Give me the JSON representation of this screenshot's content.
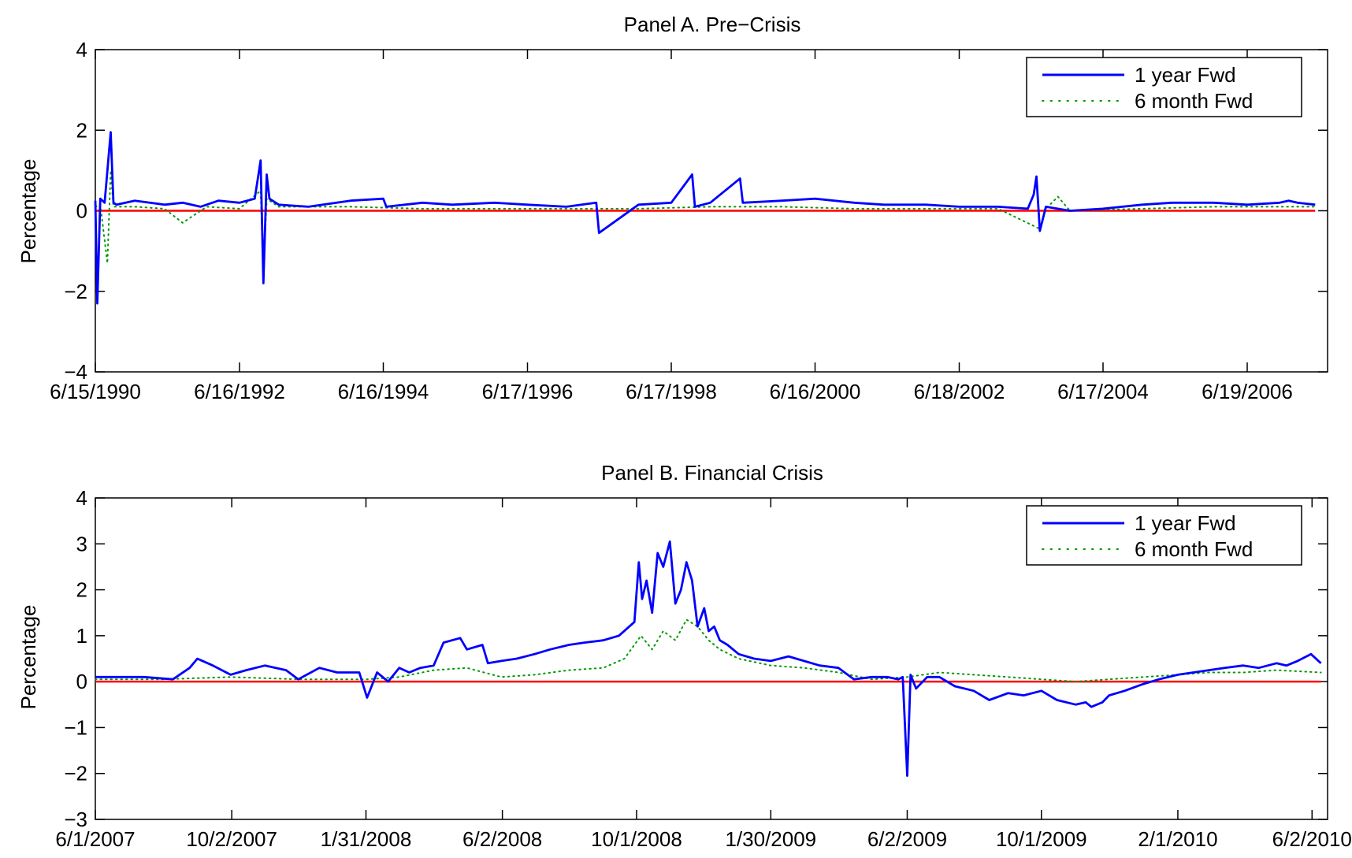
{
  "chart_data": [
    {
      "type": "line",
      "title": "Panel A. Pre−Crisis",
      "xlabel": "",
      "ylabel": "Percentage",
      "ylim": [
        -4,
        4
      ],
      "yticks": [
        "−4",
        "−2",
        "0",
        "2",
        "4"
      ],
      "xticks": [
        "6/15/1990",
        "6/16/1992",
        "6/16/1994",
        "6/17/1996",
        "6/17/1998",
        "6/16/2000",
        "6/18/2002",
        "6/17/2004",
        "6/19/2006"
      ],
      "legend_position": "top-right",
      "series": [
        {
          "name": "1 year Fwd",
          "color": "#0000ff",
          "style": "solid",
          "x": [
            "1990-06-15",
            "1990-06-25",
            "1990-07-10",
            "1990-08-01",
            "1990-09-01",
            "1990-09-15",
            "1990-10-01",
            "1991-01-01",
            "1991-06-01",
            "1991-09-01",
            "1991-12-01",
            "1992-03-01",
            "1992-06-16",
            "1992-09-01",
            "1992-10-01",
            "1992-10-15",
            "1992-11-01",
            "1992-11-15",
            "1993-01-01",
            "1993-06-01",
            "1994-01-01",
            "1994-06-16",
            "1994-07-01",
            "1995-01-01",
            "1995-06-01",
            "1996-01-01",
            "1996-06-17",
            "1997-01-01",
            "1997-06-01",
            "1997-06-15",
            "1998-01-01",
            "1998-06-17",
            "1998-10-01",
            "1998-10-15",
            "1999-01-01",
            "1999-06-01",
            "1999-06-15",
            "2000-01-01",
            "2000-06-16",
            "2001-01-01",
            "2001-06-01",
            "2002-01-01",
            "2002-06-18",
            "2003-01-01",
            "2003-06-01",
            "2003-07-01",
            "2003-07-15",
            "2003-08-01",
            "2003-09-01",
            "2004-01-01",
            "2004-06-17",
            "2005-01-01",
            "2005-06-01",
            "2006-01-01",
            "2006-06-19",
            "2006-12-01",
            "2007-01-15",
            "2007-03-01",
            "2007-05-30"
          ],
          "values": [
            0.25,
            -2.3,
            0.3,
            0.2,
            1.95,
            0.2,
            0.15,
            0.25,
            0.15,
            0.2,
            0.1,
            0.25,
            0.2,
            0.3,
            1.25,
            -1.8,
            0.9,
            0.3,
            0.15,
            0.1,
            0.25,
            0.3,
            0.1,
            0.2,
            0.15,
            0.2,
            0.15,
            0.1,
            0.2,
            -0.55,
            0.15,
            0.2,
            0.9,
            0.1,
            0.2,
            0.8,
            0.2,
            0.25,
            0.3,
            0.2,
            0.15,
            0.15,
            0.1,
            0.1,
            0.05,
            0.4,
            0.85,
            -0.5,
            0.1,
            0.0,
            0.05,
            0.15,
            0.2,
            0.2,
            0.15,
            0.2,
            0.25,
            0.2,
            0.15
          ]
        },
        {
          "name": "6 month Fwd",
          "color": "#009900",
          "style": "dotted",
          "x": [
            "1990-06-15",
            "1990-07-10",
            "1990-08-15",
            "1990-09-01",
            "1990-09-15",
            "1991-01-01",
            "1991-06-01",
            "1991-09-01",
            "1992-01-01",
            "1992-06-16",
            "1992-10-01",
            "1992-10-15",
            "1992-11-01",
            "1993-01-01",
            "1994-01-01",
            "1995-01-01",
            "1996-01-01",
            "1997-01-01",
            "1998-01-01",
            "1999-01-01",
            "2000-01-01",
            "2001-01-01",
            "2002-01-01",
            "2003-01-01",
            "2003-08-01",
            "2003-09-01",
            "2003-11-01",
            "2004-01-01",
            "2005-01-01",
            "2006-01-01",
            "2007-05-30"
          ],
          "values": [
            0.1,
            0.15,
            -1.3,
            1.0,
            0.1,
            0.1,
            0.05,
            -0.3,
            0.1,
            0.05,
            0.5,
            -1.6,
            0.3,
            0.1,
            0.1,
            0.05,
            0.05,
            0.05,
            0.05,
            0.1,
            0.1,
            0.05,
            0.05,
            0.05,
            -0.45,
            0.05,
            0.35,
            0.0,
            0.05,
            0.1,
            0.1
          ]
        }
      ]
    },
    {
      "type": "line",
      "title": "Panel B. Financial Crisis",
      "xlabel": "",
      "ylabel": "Percentage",
      "ylim": [
        -3,
        4
      ],
      "yticks": [
        "−3",
        "−2",
        "−1",
        "0",
        "1",
        "2",
        "3",
        "4"
      ],
      "xticks": [
        "6/1/2007",
        "10/2/2007",
        "1/31/2008",
        "6/2/2008",
        "10/1/2008",
        "1/30/2009",
        "6/2/2009",
        "10/1/2009",
        "2/1/2010",
        "6/2/2010"
      ],
      "legend_position": "top-right",
      "series": [
        {
          "name": "1 year Fwd",
          "color": "#0000ff",
          "style": "solid",
          "x": [
            "2007-06-01",
            "2007-06-20",
            "2007-07-15",
            "2007-08-10",
            "2007-08-25",
            "2007-09-01",
            "2007-09-15",
            "2007-10-01",
            "2007-10-15",
            "2007-11-01",
            "2007-11-20",
            "2007-12-01",
            "2007-12-20",
            "2008-01-05",
            "2008-01-25",
            "2008-02-01",
            "2008-02-10",
            "2008-02-20",
            "2008-03-01",
            "2008-03-10",
            "2008-03-20",
            "2008-04-01",
            "2008-04-10",
            "2008-04-25",
            "2008-05-01",
            "2008-05-15",
            "2008-05-20",
            "2008-06-01",
            "2008-06-15",
            "2008-07-01",
            "2008-07-15",
            "2008-08-01",
            "2008-08-15",
            "2008-09-01",
            "2008-09-15",
            "2008-09-29",
            "2008-10-03",
            "2008-10-06",
            "2008-10-10",
            "2008-10-15",
            "2008-10-20",
            "2008-10-25",
            "2008-10-31",
            "2008-11-05",
            "2008-11-10",
            "2008-11-15",
            "2008-11-20",
            "2008-11-25",
            "2008-12-01",
            "2008-12-05",
            "2008-12-10",
            "2008-12-15",
            "2008-12-22",
            "2009-01-01",
            "2009-01-15",
            "2009-01-30",
            "2009-02-15",
            "2009-03-01",
            "2009-03-15",
            "2009-04-01",
            "2009-04-15",
            "2009-05-01",
            "2009-05-15",
            "2009-05-25",
            "2009-05-29",
            "2009-06-02",
            "2009-06-05",
            "2009-06-10",
            "2009-06-20",
            "2009-07-01",
            "2009-07-15",
            "2009-08-01",
            "2009-08-15",
            "2009-09-01",
            "2009-09-15",
            "2009-10-01",
            "2009-10-15",
            "2009-11-01",
            "2009-11-10",
            "2009-11-15",
            "2009-11-25",
            "2009-12-01",
            "2009-12-15",
            "2010-01-01",
            "2010-01-15",
            "2010-02-01",
            "2010-02-15",
            "2010-03-01",
            "2010-03-15",
            "2010-04-01",
            "2010-04-15",
            "2010-05-01",
            "2010-05-10",
            "2010-05-20",
            "2010-06-01",
            "2010-06-10"
          ],
          "values": [
            0.1,
            0.1,
            0.1,
            0.05,
            0.3,
            0.5,
            0.35,
            0.15,
            0.25,
            0.35,
            0.25,
            0.05,
            0.3,
            0.2,
            0.2,
            -0.35,
            0.2,
            0.0,
            0.3,
            0.2,
            0.3,
            0.35,
            0.85,
            0.95,
            0.7,
            0.8,
            0.4,
            0.45,
            0.5,
            0.6,
            0.7,
            0.8,
            0.85,
            0.9,
            1.0,
            1.3,
            2.6,
            1.8,
            2.2,
            1.5,
            2.8,
            2.5,
            3.05,
            1.7,
            2.0,
            2.6,
            2.2,
            1.2,
            1.6,
            1.1,
            1.2,
            0.9,
            0.8,
            0.6,
            0.5,
            0.45,
            0.55,
            0.45,
            0.35,
            0.3,
            0.05,
            0.1,
            0.1,
            0.05,
            0.1,
            -2.05,
            0.15,
            -0.15,
            0.1,
            0.1,
            -0.1,
            -0.2,
            -0.4,
            -0.25,
            -0.3,
            -0.2,
            -0.4,
            -0.5,
            -0.45,
            -0.55,
            -0.45,
            -0.3,
            -0.2,
            -0.05,
            0.05,
            0.15,
            0.2,
            0.25,
            0.3,
            0.35,
            0.3,
            0.4,
            0.35,
            0.45,
            0.6,
            0.4
          ]
        },
        {
          "name": "6 month Fwd",
          "color": "#009900",
          "style": "dotted",
          "x": [
            "2007-06-01",
            "2007-08-01",
            "2007-10-01",
            "2007-12-01",
            "2008-02-01",
            "2008-03-01",
            "2008-04-01",
            "2008-05-01",
            "2008-06-01",
            "2008-07-01",
            "2008-08-01",
            "2008-09-01",
            "2008-09-20",
            "2008-10-05",
            "2008-10-15",
            "2008-10-25",
            "2008-11-05",
            "2008-11-15",
            "2008-11-25",
            "2008-12-05",
            "2008-12-15",
            "2009-01-01",
            "2009-01-30",
            "2009-03-01",
            "2009-04-01",
            "2009-05-01",
            "2009-06-02",
            "2009-07-01",
            "2009-08-01",
            "2009-09-01",
            "2009-10-01",
            "2009-11-01",
            "2009-12-01",
            "2010-01-01",
            "2010-02-01",
            "2010-03-01",
            "2010-04-01",
            "2010-05-01",
            "2010-06-10"
          ],
          "values": [
            0.05,
            0.05,
            0.1,
            0.05,
            0.05,
            0.1,
            0.25,
            0.3,
            0.1,
            0.15,
            0.25,
            0.3,
            0.5,
            1.0,
            0.7,
            1.1,
            0.9,
            1.35,
            1.2,
            0.9,
            0.7,
            0.5,
            0.35,
            0.3,
            0.2,
            0.05,
            0.1,
            0.2,
            0.15,
            0.1,
            0.05,
            0.0,
            0.05,
            0.1,
            0.15,
            0.2,
            0.2,
            0.25,
            0.2
          ]
        }
      ]
    }
  ]
}
